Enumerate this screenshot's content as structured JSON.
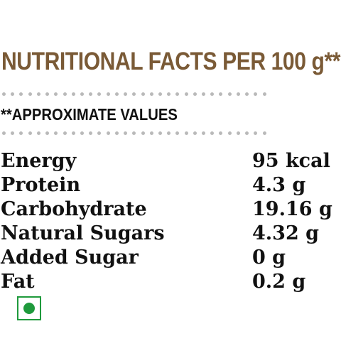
{
  "header": {
    "title": "NUTRITIONAL FACTS PER 100 g**"
  },
  "note": "**APPROXIMATE VALUES",
  "facts": [
    {
      "label": "Energy",
      "value": "95 kcal"
    },
    {
      "label": "Protein",
      "value": "4.3 g"
    },
    {
      "label": "Carbohydrate",
      "value": "19.16 g"
    },
    {
      "label": "Natural Sugars",
      "value": "4.32 g"
    },
    {
      "label": "Added Sugar",
      "value": "0 g"
    },
    {
      "label": "Fat",
      "value": "0.2 g"
    }
  ],
  "veg_mark": {
    "icon": "veg-symbol-icon",
    "color": "#1f9a3c"
  },
  "colors": {
    "title": "#7a5a36",
    "text": "#111111",
    "dots": "#b9b9b9"
  }
}
